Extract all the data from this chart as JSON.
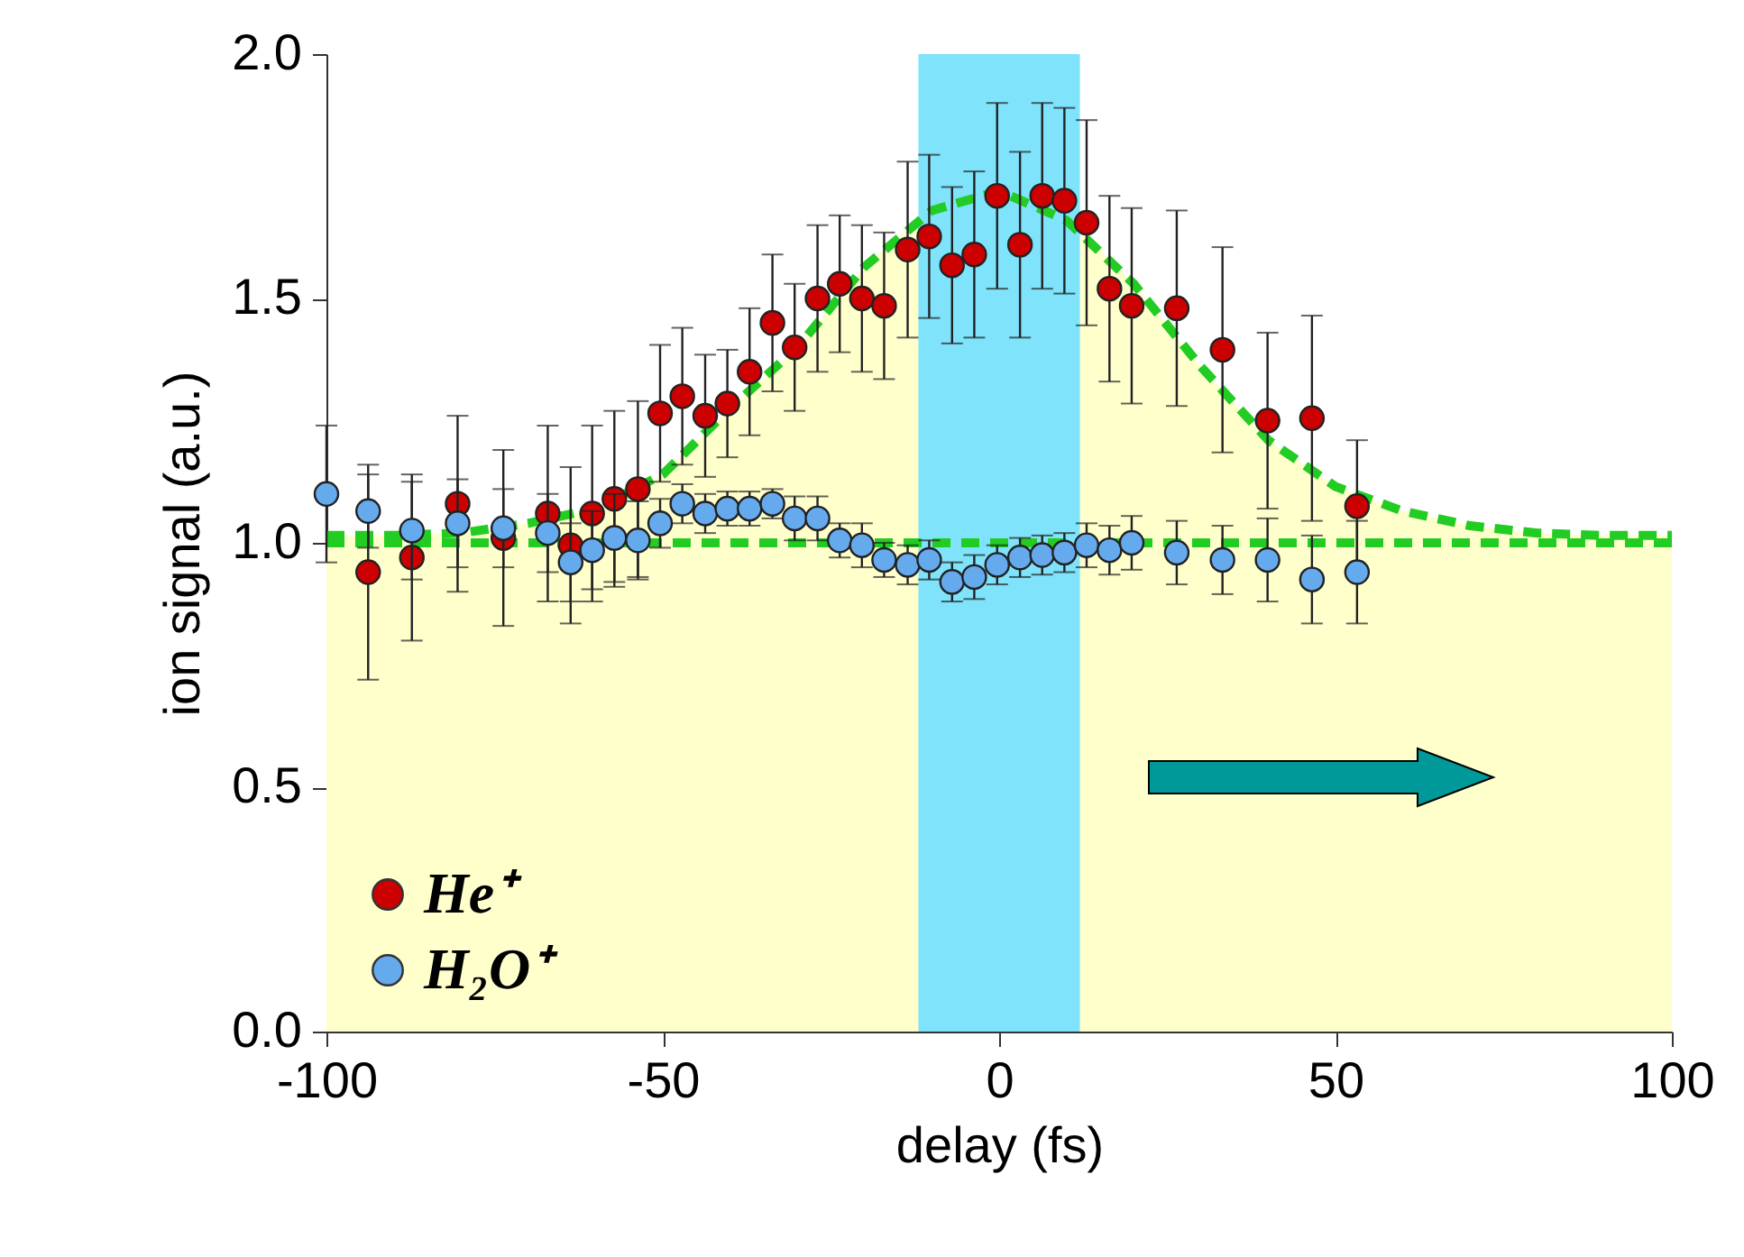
{
  "chart_data": {
    "type": "scatter",
    "xlabel": "delay (fs)",
    "ylabel": "ion signal (a.u.)",
    "xlim": [
      -100,
      100
    ],
    "xticks": [
      -100,
      -50,
      0,
      50,
      100
    ],
    "ylim": [
      0,
      2
    ],
    "yticks": [
      {
        "value": 0,
        "label": "0.0"
      },
      {
        "value": 0.5,
        "label": "0.5"
      },
      {
        "value": 1,
        "label": "1.0"
      },
      {
        "value": 1.5,
        "label": "1.5"
      },
      {
        "value": 2,
        "label": "2.0"
      }
    ],
    "grid": false,
    "legend": "bottom left",
    "marker": "circle",
    "bands": [
      {
        "axis": "x",
        "from": -12,
        "to": 12,
        "color": "#7fe3fb"
      }
    ],
    "series": [
      {
        "type": "area",
        "marker": "none",
        "color": "#ffffcc",
        "x": [
          -100,
          -90,
          -80,
          -70,
          -60,
          -50,
          -40,
          -30,
          -20,
          -13,
          13,
          20,
          30,
          40,
          50,
          60,
          70,
          80,
          90,
          100
        ],
        "values": [
          1.015,
          1.015,
          1.02,
          1.04,
          1.07,
          1.14,
          1.275,
          1.4,
          1.565,
          1.65,
          1.63,
          1.53,
          1.36,
          1.21,
          1.115,
          1.065,
          1.035,
          1.02,
          1.015,
          1.015
        ]
      },
      {
        "type": "line",
        "marker": "none",
        "line_style": "dashed",
        "color": "#22cc22",
        "x": [
          -100,
          -90,
          -80,
          -70,
          -60,
          -50,
          -40,
          -30,
          -20,
          -10,
          0,
          10,
          20,
          30,
          40,
          50,
          60,
          70,
          80,
          90,
          100
        ],
        "values": [
          1.015,
          1.015,
          1.02,
          1.04,
          1.07,
          1.14,
          1.275,
          1.4,
          1.565,
          1.68,
          1.72,
          1.66,
          1.53,
          1.36,
          1.21,
          1.115,
          1.065,
          1.035,
          1.02,
          1.015,
          1.015
        ]
      },
      {
        "type": "line",
        "marker": "none",
        "line_style": "dashed",
        "color": "#22cc22",
        "x": [
          -100,
          -90,
          -80,
          -70,
          -60,
          -50,
          -40,
          -30,
          -20,
          -10,
          0,
          10,
          20,
          30,
          40,
          50,
          60,
          70,
          80,
          90,
          100
        ],
        "values": [
          1.0,
          1.0,
          1.0,
          1.0,
          1.0,
          1.0,
          1.0,
          1.0,
          1.0,
          1.0,
          1.0,
          1.0,
          1.0,
          1.0,
          1.0,
          1.0,
          1.0,
          1.0,
          1.0,
          1.0,
          1.0
        ]
      },
      {
        "type": "scatter",
        "name": "He⁺",
        "color": "#cc0000",
        "x": [
          -93.8,
          -87.3,
          -80.5,
          -73.7,
          -67.1,
          -63.7,
          -60.5,
          -57.2,
          -53.7,
          -50.4,
          -47.1,
          -43.7,
          -40.4,
          -37.1,
          -33.7,
          -30.4,
          -27,
          -23.7,
          -20.4,
          -17.1,
          -13.6,
          -10.4,
          -7,
          -3.7,
          -0.3,
          3.1,
          6.4,
          9.7,
          13,
          16.4,
          19.7,
          26.4,
          33.2,
          39.9,
          46.5,
          53.2
        ],
        "values": [
          0.94,
          0.97,
          1.08,
          1.01,
          1.06,
          0.995,
          1.06,
          1.09,
          1.11,
          1.265,
          1.3,
          1.26,
          1.285,
          1.35,
          1.45,
          1.4,
          1.5,
          1.53,
          1.5,
          1.485,
          1.6,
          1.627,
          1.568,
          1.59,
          1.71,
          1.61,
          1.71,
          1.7,
          1.655,
          1.52,
          1.485,
          1.48,
          1.395,
          1.25,
          1.255,
          1.075
        ],
        "errors": [
          0.22,
          0.17,
          0.18,
          0.18,
          0.18,
          0.16,
          0.18,
          0.18,
          0.18,
          0.14,
          0.14,
          0.125,
          0.11,
          0.13,
          0.14,
          0.13,
          0.15,
          0.14,
          0.15,
          0.15,
          0.18,
          0.167,
          0.16,
          0.17,
          0.19,
          0.19,
          0.19,
          0.19,
          0.21,
          0.19,
          0.2,
          0.2,
          0.21,
          0.18,
          0.21,
          0.135
        ]
      },
      {
        "type": "scatter",
        "name": "H₂O⁺",
        "color": "#66aaee",
        "x": [
          -100,
          -93.8,
          -87.3,
          -80.5,
          -73.7,
          -67.1,
          -63.7,
          -60.5,
          -57.2,
          -53.7,
          -50.4,
          -47.1,
          -43.7,
          -40.4,
          -37.1,
          -33.7,
          -30.4,
          -27,
          -23.7,
          -20.4,
          -17.1,
          -13.6,
          -10.4,
          -7,
          -3.7,
          -0.3,
          3.1,
          6.4,
          9.7,
          13,
          16.4,
          19.7,
          26.4,
          33.2,
          39.9,
          46.5,
          53.2
        ],
        "values": [
          1.1,
          1.065,
          1.025,
          1.04,
          1.03,
          1.02,
          0.96,
          0.985,
          1.01,
          1.005,
          1.04,
          1.08,
          1.06,
          1.07,
          1.07,
          1.08,
          1.05,
          1.05,
          1.005,
          0.995,
          0.965,
          0.955,
          0.965,
          0.92,
          0.93,
          0.955,
          0.97,
          0.975,
          0.98,
          0.995,
          0.985,
          1,
          0.98,
          0.965,
          0.965,
          0.925,
          0.94
        ],
        "errors": [
          0.14,
          0.075,
          0.1,
          0.09,
          0.08,
          0.08,
          0.08,
          0.08,
          0.09,
          0.08,
          0.05,
          0.04,
          0.04,
          0.035,
          0.035,
          0.03,
          0.045,
          0.045,
          0.035,
          0.045,
          0.035,
          0.04,
          0.04,
          0.04,
          0.045,
          0.04,
          0.04,
          0.04,
          0.04,
          0.045,
          0.05,
          0.055,
          0.065,
          0.07,
          0.085,
          0.09,
          0.105
        ]
      }
    ]
  }
}
